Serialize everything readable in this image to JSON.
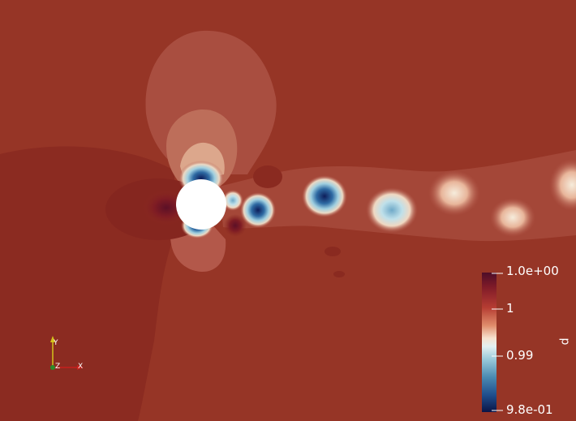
{
  "window": {
    "title": ""
  },
  "colors": {
    "background": "#963526",
    "wake_dark": "#8a2a20",
    "contour_light": "#b3584a",
    "contour_lighter": "#d09a82",
    "contour_pale": "#f1ddc8",
    "vortex_blue": "#1b3a74",
    "vortex_light_blue": "#8ec3d8",
    "cylinder": "#ffffff"
  },
  "scalar_bar": {
    "title": "p",
    "labels": [
      "1.0e+00",
      "1",
      "0.99",
      "9.8e-01"
    ],
    "stops": [
      {
        "offset": 0.0,
        "color": "#4d0d28"
      },
      {
        "offset": 0.1,
        "color": "#7e1a28"
      },
      {
        "offset": 0.25,
        "color": "#b53c32"
      },
      {
        "offset": 0.38,
        "color": "#e08d6c"
      },
      {
        "offset": 0.47,
        "color": "#f7e1cf"
      },
      {
        "offset": 0.53,
        "color": "#e4f0f2"
      },
      {
        "offset": 0.62,
        "color": "#9bcadb"
      },
      {
        "offset": 0.75,
        "color": "#4a8ab2"
      },
      {
        "offset": 0.88,
        "color": "#1f4d8c"
      },
      {
        "offset": 1.0,
        "color": "#0b1546"
      }
    ]
  },
  "orientation_axes": {
    "x_label": "X",
    "y_label": "Y",
    "z_label": "Z"
  }
}
